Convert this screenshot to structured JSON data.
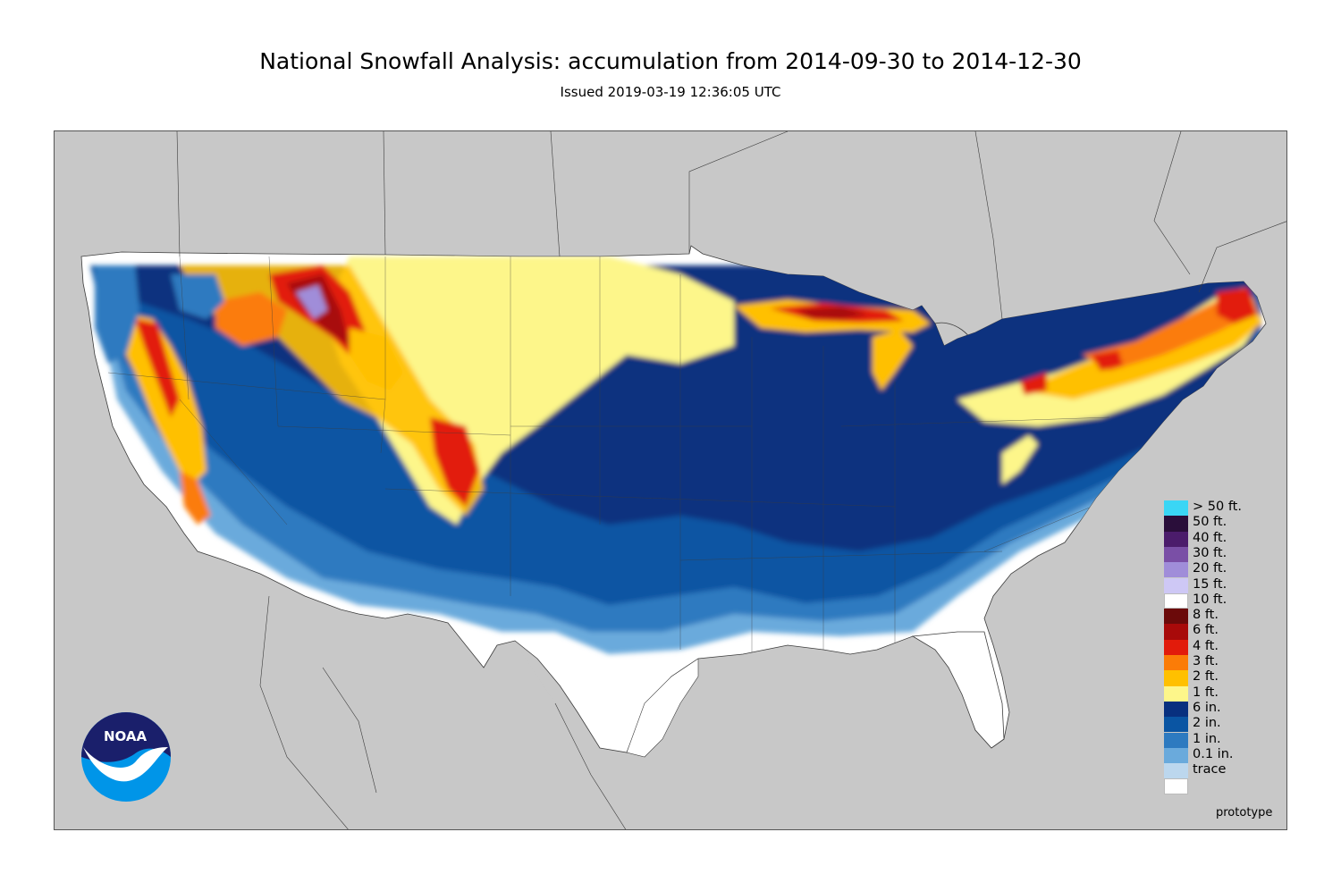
{
  "title": "National Snowfall Analysis: accumulation from 2014-09-30 to 2014-12-30",
  "subtitle": "Issued 2019-03-19 12:36:05 UTC",
  "watermark": "prototype",
  "logo": {
    "text": "NOAA",
    "colors": {
      "top": "#1a1f6b",
      "bottom": "#0095e8",
      "bird": "#ffffff"
    }
  },
  "map": {
    "background_color": "#c8c8c8",
    "land_color": "#ffffff",
    "border_color": "#3c3c3c"
  },
  "legend": [
    {
      "label": "> 50 ft.",
      "color": "#3ad6f5"
    },
    {
      "label": "50 ft.",
      "color": "#2a0e3a"
    },
    {
      "label": "40 ft.",
      "color": "#4b1c6b"
    },
    {
      "label": "30 ft.",
      "color": "#7a4fa6"
    },
    {
      "label": "20 ft.",
      "color": "#a08dd9"
    },
    {
      "label": "15 ft.",
      "color": "#cec8f5"
    },
    {
      "label": "10 ft.",
      "color": "#ffffff"
    },
    {
      "label": "8 ft.",
      "color": "#6b0a0a"
    },
    {
      "label": "6 ft.",
      "color": "#a80a0a"
    },
    {
      "label": "4 ft.",
      "color": "#e21b0b"
    },
    {
      "label": "3 ft.",
      "color": "#fb7c07"
    },
    {
      "label": "2 ft.",
      "color": "#ffc000"
    },
    {
      "label": "1 ft.",
      "color": "#fdf68a"
    },
    {
      "label": "6 in.",
      "color": "#08307f"
    },
    {
      "label": "2 in.",
      "color": "#0a55a3"
    },
    {
      "label": "1 in.",
      "color": "#2d7ac0"
    },
    {
      "label": "0.1 in.",
      "color": "#6aaadc"
    },
    {
      "label": "trace",
      "color": "#bcd7ee"
    },
    {
      "label": "",
      "color": "#ffffff"
    }
  ]
}
